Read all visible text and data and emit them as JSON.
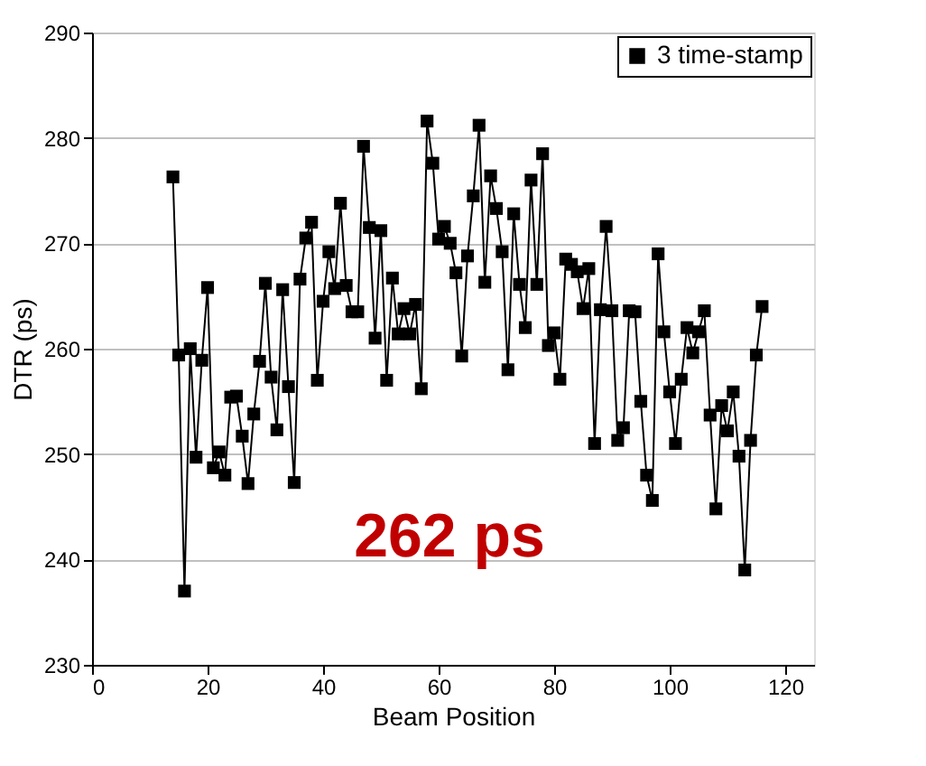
{
  "chart_data": {
    "type": "line",
    "xlabel": "Beam Position",
    "ylabel": "DTR (ps)",
    "xlim": [
      0,
      125
    ],
    "xticks": [
      0,
      20,
      40,
      60,
      80,
      100,
      120
    ],
    "ylim": [
      230,
      290
    ],
    "yticks": [
      230,
      240,
      250,
      260,
      270,
      280,
      290
    ],
    "grid": "y",
    "legend": "top right",
    "marker": "square",
    "line_style": "solid",
    "annotations": [
      "262 ps"
    ],
    "x": [
      14,
      15,
      16,
      17,
      18,
      19,
      20,
      21,
      22,
      23,
      24,
      25,
      26,
      27,
      28,
      29,
      30,
      31,
      32,
      33,
      34,
      35,
      36,
      37,
      38,
      39,
      40,
      41,
      42,
      43,
      44,
      45,
      46,
      47,
      48,
      49,
      50,
      51,
      52,
      53,
      54,
      55,
      56,
      57,
      58,
      59,
      60,
      61,
      62,
      63,
      64,
      65,
      66,
      67,
      68,
      69,
      70,
      71,
      72,
      73,
      74,
      75,
      76,
      77,
      78,
      79,
      80,
      81,
      82,
      83,
      84,
      85,
      86,
      87,
      88,
      89,
      90,
      91,
      92,
      93,
      94,
      95,
      96,
      97,
      98,
      99,
      100,
      101,
      102,
      103,
      104,
      105,
      106,
      107,
      108,
      109,
      110,
      111,
      112,
      113,
      114,
      115,
      116
    ],
    "series": [
      {
        "name": "3 time-stamp",
        "color": "#000000",
        "values": [
          276.3,
          259.4,
          237,
          260,
          249.7,
          258.9,
          265.8,
          248.7,
          250.2,
          248,
          255.4,
          255.5,
          251.7,
          247.2,
          253.8,
          258.8,
          266.2,
          257.3,
          252.3,
          265.6,
          256.4,
          247.3,
          266.6,
          270.5,
          272,
          257,
          264.5,
          269.2,
          265.7,
          273.8,
          266,
          263.5,
          263.5,
          279.2,
          271.5,
          261,
          271.2,
          257,
          266.7,
          261.4,
          263.8,
          261.4,
          264.2,
          256.2,
          281.6,
          277.6,
          270.4,
          271.6,
          270,
          267.2,
          259.3,
          268.8,
          274.5,
          281.2,
          266.3,
          276.4,
          273.3,
          269.2,
          258,
          272.8,
          266.1,
          262,
          276,
          266.1,
          278.5,
          260.3,
          261.5,
          257.1,
          268.5,
          268,
          267.3,
          263.8,
          267.6,
          251,
          263.7,
          271.6,
          263.6,
          251.3,
          252.5,
          263.6,
          263.5,
          255,
          248,
          245.6,
          269,
          261.6,
          255.9,
          251,
          257.1,
          262,
          259.6,
          261.6,
          263.6,
          253.7,
          244.8,
          254.6,
          252.2,
          255.9,
          249.8,
          239,
          251.3,
          259.4,
          264
        ]
      }
    ]
  }
}
